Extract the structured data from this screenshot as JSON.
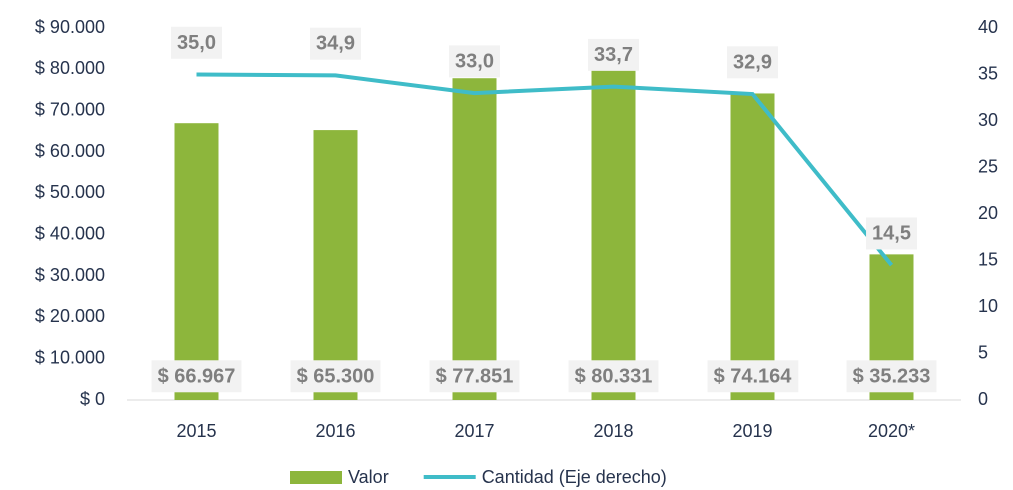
{
  "chart_data": {
    "type": "bar",
    "categories": [
      "2015",
      "2016",
      "2017",
      "2018",
      "2019",
      "2020*"
    ],
    "series": [
      {
        "name": "Valor",
        "type": "bar",
        "color": "#8db63c",
        "axis": "y",
        "values": [
          66967,
          65300,
          77851,
          80331,
          74164,
          35233
        ],
        "value_labels": [
          "$ 66.967",
          "$ 65.300",
          "$ 77.851",
          "$ 80.331",
          "$ 74.164",
          "$ 35.233"
        ]
      },
      {
        "name": "Cantidad (Eje derecho)",
        "type": "line",
        "color": "#3fbcc8",
        "axis": "y2",
        "values": [
          35.0,
          34.9,
          33.0,
          33.7,
          32.9,
          14.5
        ],
        "value_labels": [
          "35,0",
          "34,9",
          "33,0",
          "33,7",
          "32,9",
          "14,5"
        ]
      }
    ],
    "ylim": [
      0,
      90000
    ],
    "yticks": [
      {
        "value": 0,
        "label": "$ 0"
      },
      {
        "value": 10000,
        "label": "$ 10.000"
      },
      {
        "value": 20000,
        "label": "$ 20.000"
      },
      {
        "value": 30000,
        "label": "$ 30.000"
      },
      {
        "value": 40000,
        "label": "$ 40.000"
      },
      {
        "value": 50000,
        "label": "$ 50.000"
      },
      {
        "value": 60000,
        "label": "$ 60.000"
      },
      {
        "value": 70000,
        "label": "$ 70.000"
      },
      {
        "value": 80000,
        "label": "$ 80.000"
      },
      {
        "value": 90000,
        "label": "$ 90.000"
      }
    ],
    "y2lim": [
      0,
      40
    ],
    "y2ticks": [
      0,
      5,
      10,
      15,
      20,
      25,
      30,
      35,
      40
    ],
    "legend": "bottom"
  }
}
